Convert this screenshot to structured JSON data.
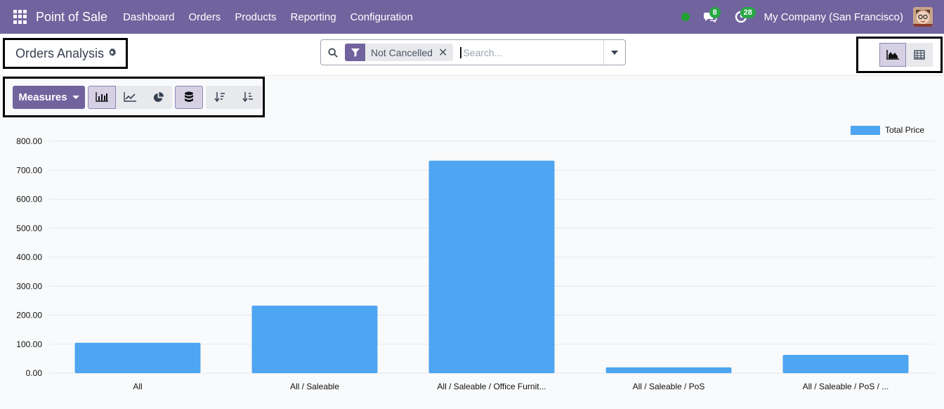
{
  "navbar": {
    "app_name": "Point of Sale",
    "menu": [
      "Dashboard",
      "Orders",
      "Products",
      "Reporting",
      "Configuration"
    ],
    "messages_badge": "8",
    "activities_badge": "28",
    "company": "My Company (San Francisco)",
    "status_color": "#22a331",
    "brand_color": "#71639e"
  },
  "control_panel": {
    "title": "Orders Analysis",
    "search": {
      "facet_label": "Not Cancelled",
      "placeholder": "Search..."
    }
  },
  "toolbar": {
    "measures_label": "Measures"
  },
  "chart_data": {
    "type": "bar",
    "categories": [
      "All",
      "All / Saleable",
      "All / Saleable / Office Furnit...",
      "All / Saleable / PoS",
      "All / Saleable / PoS / ..."
    ],
    "series": [
      {
        "name": "Total Price",
        "values": [
          105,
          233,
          733,
          20,
          63
        ],
        "color": "#4ea5f1"
      }
    ],
    "ylim": [
      0,
      800
    ],
    "yticks": [
      "0.00",
      "100.00",
      "200.00",
      "300.00",
      "400.00",
      "500.00",
      "600.00",
      "700.00",
      "800.00"
    ],
    "grid": true,
    "legend_position": "top-right"
  }
}
